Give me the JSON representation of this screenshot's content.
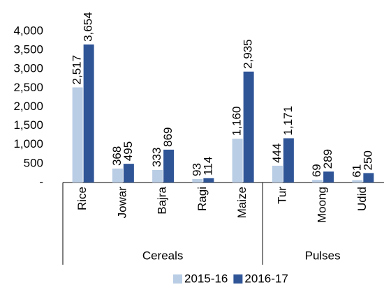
{
  "chart_data": {
    "type": "bar",
    "groups": [
      {
        "name": "Cereals",
        "categories": [
          "Rice",
          "Jowar",
          "Bajra",
          "Ragi",
          "Maize"
        ]
      },
      {
        "name": "Pulses",
        "categories": [
          "Tur",
          "Moong",
          "Udid"
        ]
      }
    ],
    "series": [
      {
        "name": "2015-16",
        "color": "#b9cde5",
        "values": [
          2517,
          368,
          333,
          93,
          1160,
          444,
          69,
          61
        ],
        "value_labels": [
          "2,517",
          "368",
          "333",
          "93",
          "1,160",
          "444",
          "69",
          "61"
        ]
      },
      {
        "name": "2016-17",
        "color": "#2f5597",
        "values": [
          3654,
          495,
          869,
          114,
          2935,
          1171,
          289,
          250
        ],
        "value_labels": [
          "3,654",
          "495",
          "869",
          "114",
          "2,935",
          "1,171",
          "289",
          "250"
        ]
      }
    ],
    "ylim": [
      0,
      4000
    ],
    "yticks": [
      {
        "value": 0,
        "label": "-"
      },
      500,
      {
        "value": 1000,
        "label": "1,000"
      },
      {
        "value": 1500,
        "label": "1,500"
      },
      {
        "value": 2000,
        "label": "2,000"
      },
      {
        "value": 2500,
        "label": "2,500"
      },
      {
        "value": 3000,
        "label": "3,000"
      },
      {
        "value": 3500,
        "label": "3,500"
      },
      {
        "value": 4000,
        "label": "4,000"
      }
    ],
    "legend": "bottom"
  }
}
